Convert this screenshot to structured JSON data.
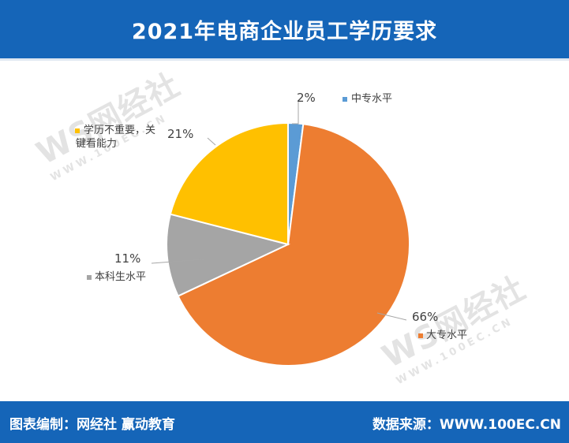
{
  "header": {
    "title": "2021年电商企业员工学历要求"
  },
  "footer": {
    "source_left": "图表编制：网经社  赢动教育",
    "source_right": "数据来源：WWW.100EC.CN"
  },
  "watermark": {
    "logo": "WS网经社",
    "domain": "WWW.100EC.CN"
  },
  "colors": {
    "header_bg": "#1565b8",
    "slice_1": "#5b9bd5",
    "slice_2": "#ed7d31",
    "slice_3": "#a5a5a5",
    "slice_4": "#ffc000"
  },
  "chart_data": {
    "type": "pie",
    "title": "2021年电商企业员工学历要求",
    "slices": [
      {
        "label": "中专水平",
        "value": 2,
        "value_label": "2%",
        "color": "#5b9bd5"
      },
      {
        "label": "大专水平",
        "value": 66,
        "value_label": "66%",
        "color": "#ed7d31"
      },
      {
        "label": "本科生水平",
        "value": 11,
        "value_label": "11%",
        "color": "#a5a5a5"
      },
      {
        "label": "学历不重要，关键看能力",
        "value": 21,
        "value_label": "21%",
        "color": "#ffc000"
      }
    ],
    "start_angle_deg": 0,
    "direction": "clockwise"
  }
}
